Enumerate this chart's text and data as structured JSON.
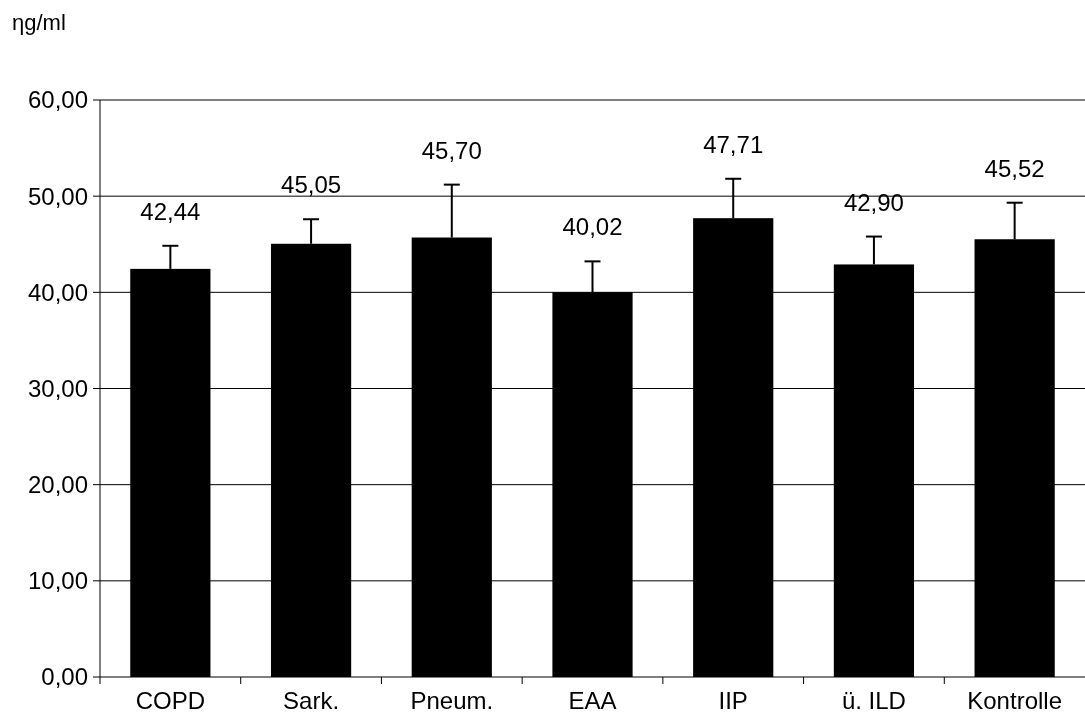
{
  "chart_data": {
    "type": "bar",
    "ylabel": "ηg/ml",
    "categories": [
      "COPD",
      "Sark.",
      "Pneum.",
      "EAA",
      "IIP",
      "ü. ILD",
      "Kontrolle"
    ],
    "values": [
      42.44,
      45.05,
      45.7,
      40.02,
      47.71,
      42.9,
      45.52
    ],
    "value_labels": [
      "42,44",
      "45,05",
      "45,70",
      "40,02",
      "47,71",
      "42,90",
      "45,52"
    ],
    "errors": [
      2.4,
      2.55,
      5.5,
      3.2,
      4.1,
      2.9,
      3.8
    ],
    "color": "#000000",
    "ylim": [
      0,
      60
    ],
    "yticks": [
      {
        "value": 0,
        "label": "0,00"
      },
      {
        "value": 10,
        "label": "10,00"
      },
      {
        "value": 20,
        "label": "20,00"
      },
      {
        "value": 30,
        "label": "30,00"
      },
      {
        "value": 40,
        "label": "40,00"
      },
      {
        "value": 50,
        "label": "50,00"
      },
      {
        "value": 60,
        "label": "60,00"
      }
    ],
    "grid": "y"
  }
}
